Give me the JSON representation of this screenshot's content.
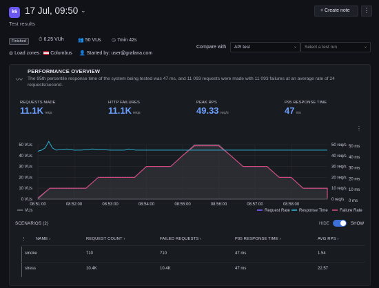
{
  "header": {
    "logo_text": "k6",
    "title": "17 Jul, 09:50",
    "subtitle": "Test results",
    "create_note_label": "+  Create note",
    "more_label": "⋮"
  },
  "meta": {
    "status_badge": "Finished",
    "vuh": "6.25 VUh",
    "vus": "50 VUs",
    "duration": "7min 42s",
    "load_zones_label": "Load zones:",
    "load_zone": "Columbus",
    "started_by": "Started by: user@grafana.com"
  },
  "compare": {
    "label": "Compare with",
    "selected": "API test",
    "run_placeholder": "Select a test run"
  },
  "overview": {
    "title": "PERFORMANCE OVERVIEW",
    "description": "The 95th percentile response time of the system being tested was 47 ms, and 11 093 requests were made with 11 093 failures at an average rate of 24 requests/second."
  },
  "stats": [
    {
      "label": "REQUESTS MADE",
      "value": "11.1K",
      "unit": "reqs"
    },
    {
      "label": "HTTP FAILURES",
      "value": "11.1K",
      "unit": "reqs"
    },
    {
      "label": "PEAK RPS",
      "value": "49.33",
      "unit": "req/s"
    },
    {
      "label": "P95 RESPONSE TIME",
      "value": "47",
      "unit": "ms"
    }
  ],
  "colors": {
    "accent": "#6e9fff",
    "vus": "#73737d",
    "request_rate": "#7b61ff",
    "response_time": "#2bb5d6",
    "failure_rate": "#d44a77"
  },
  "chart_data": {
    "type": "line",
    "x": [
      "08:51:00",
      "08:52:00",
      "08:53:00",
      "08:54:00",
      "08:55:00",
      "08:56:00",
      "08:57:00",
      "08:58:00"
    ],
    "y_left_ticks": [
      "0 VUs",
      "10 VUs",
      "20 VUs",
      "30 VUs",
      "40 VUs",
      "50 VUs"
    ],
    "y_mid_ticks": [
      "0 req/s",
      "10 req/s",
      "20 req/s",
      "30 req/s",
      "40 req/s",
      "50 req/s"
    ],
    "y_right_ticks": [
      "0 ms",
      "10 ms",
      "20 ms",
      "30 ms",
      "40 ms",
      "50 ms"
    ],
    "ylim": [
      0,
      50
    ],
    "series": [
      {
        "name": "VUs",
        "unit": "VUs",
        "points": [
          [
            0,
            0
          ],
          [
            0.33,
            10
          ],
          [
            1.33,
            10
          ],
          [
            1.67,
            20
          ],
          [
            2.67,
            20
          ],
          [
            3,
            30
          ],
          [
            3.67,
            30
          ],
          [
            4,
            40
          ],
          [
            4.33,
            50
          ],
          [
            5,
            50
          ],
          [
            5.33,
            40
          ],
          [
            5.67,
            30
          ],
          [
            6.33,
            30
          ],
          [
            6.67,
            20
          ],
          [
            7,
            20
          ],
          [
            7.33,
            10
          ],
          [
            8,
            10
          ],
          [
            8,
            0
          ]
        ]
      },
      {
        "name": "Request Rate",
        "unit": "req/s",
        "points": [
          [
            0,
            1
          ],
          [
            0.33,
            10
          ],
          [
            1.33,
            10
          ],
          [
            1.67,
            20
          ],
          [
            2.67,
            20
          ],
          [
            3,
            30
          ],
          [
            3.67,
            30
          ],
          [
            4,
            40
          ],
          [
            4.33,
            49
          ],
          [
            5,
            49
          ],
          [
            5.33,
            40
          ],
          [
            5.67,
            30
          ],
          [
            6.33,
            30
          ],
          [
            6.67,
            20
          ],
          [
            7,
            20
          ],
          [
            7.33,
            10
          ],
          [
            8,
            10
          ],
          [
            8,
            1
          ]
        ]
      },
      {
        "name": "Response Time",
        "unit": "ms",
        "points": [
          [
            0,
            44
          ],
          [
            0.1,
            45
          ],
          [
            0.2,
            47
          ],
          [
            0.3,
            53
          ],
          [
            0.4,
            47
          ],
          [
            0.5,
            45
          ],
          [
            0.8,
            46
          ],
          [
            1.0,
            45
          ],
          [
            1.2,
            45
          ],
          [
            1.5,
            46
          ],
          [
            2,
            45
          ],
          [
            2.4,
            45
          ],
          [
            2.5,
            46
          ],
          [
            2.7,
            45
          ],
          [
            3,
            45
          ],
          [
            3.5,
            45
          ],
          [
            4,
            45
          ],
          [
            4.5,
            45
          ],
          [
            5,
            45
          ],
          [
            5.5,
            45
          ],
          [
            6,
            45
          ],
          [
            6.5,
            45
          ],
          [
            7,
            45
          ],
          [
            7.5,
            45
          ],
          [
            8,
            45
          ]
        ]
      },
      {
        "name": "Failure Rate",
        "unit": "req/s",
        "points": [
          [
            0,
            1
          ],
          [
            0.33,
            10
          ],
          [
            1.33,
            10
          ],
          [
            1.67,
            20
          ],
          [
            2.67,
            20
          ],
          [
            3,
            30
          ],
          [
            3.67,
            30
          ],
          [
            4,
            40
          ],
          [
            4.33,
            49
          ],
          [
            5,
            49
          ],
          [
            5.33,
            40
          ],
          [
            5.67,
            30
          ],
          [
            6.33,
            30
          ],
          [
            6.67,
            20
          ],
          [
            7,
            20
          ],
          [
            7.33,
            10
          ],
          [
            8,
            10
          ],
          [
            8,
            1
          ]
        ]
      }
    ],
    "legend": [
      "VUs",
      "Request Rate",
      "Response Time",
      "Failure Rate"
    ],
    "legend_placement": "bottom"
  },
  "scenarios": {
    "title": "SCENARIOS (2)",
    "hide_label": "HIDE",
    "show_label": "SHOW",
    "columns": [
      "NAME ›",
      "REQUEST COUNT ›",
      "FAILED REQUESTS ›",
      "P95 RESPONSE TIME ›",
      "AVG RPS ›"
    ],
    "rows": [
      [
        "smoke",
        "710",
        "710",
        "47 ms",
        "1.54"
      ],
      [
        "stress",
        "10.4K",
        "10.4K",
        "47 ms",
        "22.57"
      ]
    ]
  }
}
